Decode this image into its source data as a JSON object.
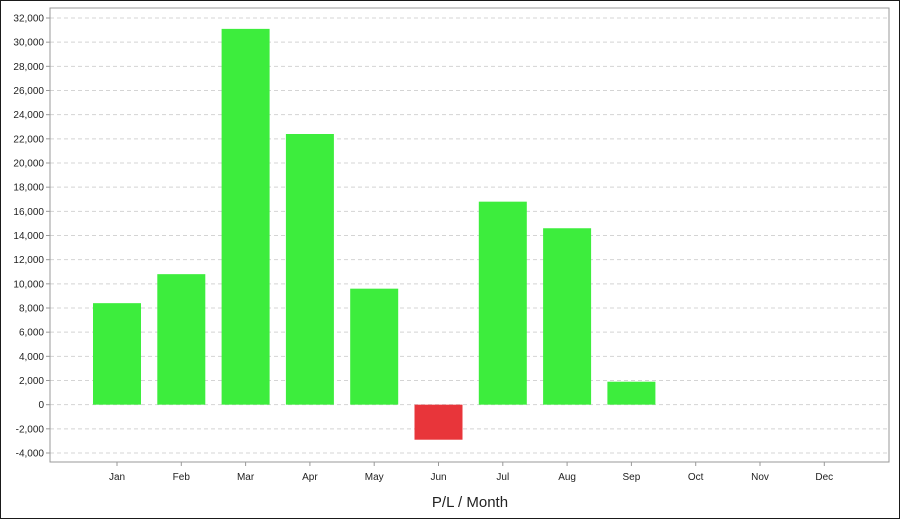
{
  "chart_data": {
    "type": "bar",
    "title": "",
    "xlabel": "P/L / Month",
    "ylabel": "",
    "categories": [
      "Jan",
      "Feb",
      "Mar",
      "Apr",
      "May",
      "Jun",
      "Jul",
      "Aug",
      "Sep",
      "Oct",
      "Nov",
      "Dec"
    ],
    "series": [
      {
        "values": [
          8400,
          10800,
          31100,
          22400,
          9600,
          -2900,
          16800,
          14600,
          1900,
          null,
          null,
          null
        ]
      }
    ],
    "ylim": [
      -4000,
      32000
    ],
    "yticks": [
      -4000,
      -2000,
      0,
      2000,
      4000,
      6000,
      8000,
      10000,
      12000,
      14000,
      16000,
      18000,
      20000,
      22000,
      24000,
      26000,
      28000,
      30000,
      32000
    ],
    "grid": true,
    "legend": "none",
    "colors": {
      "positive": "#3ded3d",
      "negative": "#e8353a",
      "grid": "#d4d4d4",
      "axis": "#999999"
    }
  }
}
